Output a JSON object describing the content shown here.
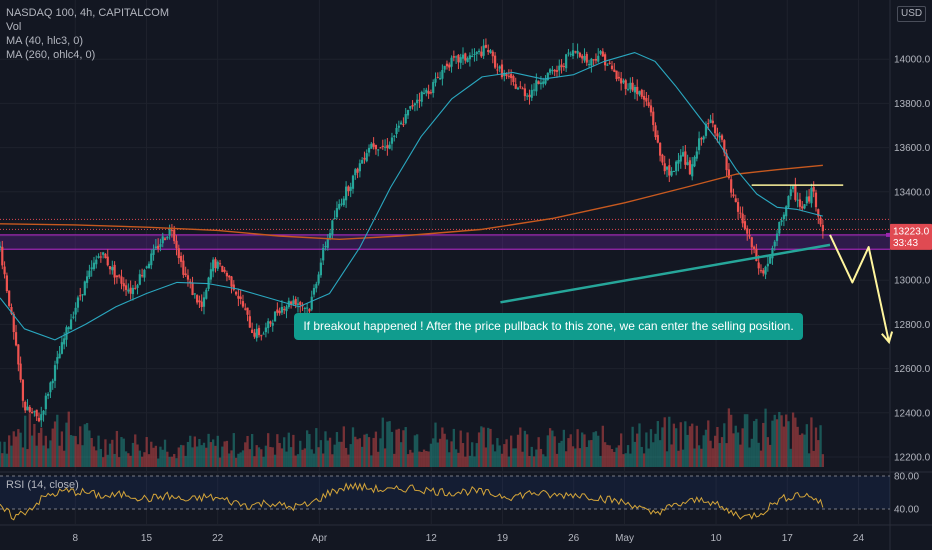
{
  "header": {
    "symbol_line": "NASDAQ 100, 4h, CAPITALCOM",
    "indicators": [
      "Vol",
      "MA (40, hlc3, 0)",
      "MA (260, ohlc4, 0)"
    ],
    "currency": "USD"
  },
  "price_tag": {
    "value": "13223.0",
    "countdown": "33:43",
    "color": "#e04a52"
  },
  "annotation": "If breakout happened ! After the price pullback to this zone, we can enter the selling position.",
  "rsi_panel": {
    "label": "RSI (14, close)",
    "levels": [
      "80.00",
      "40.00"
    ]
  },
  "colors": {
    "bullish": "#26a69a",
    "bearish": "#ef5350",
    "ma40": "#2aa7bf",
    "ma260": "#c7591f",
    "zone": "#9c27b0",
    "resistance": "#fff59d",
    "forecast": "#fff59d",
    "trendline": "#26a69a",
    "callout_bg": "#109c8e",
    "rsi_line": "#d4a53a"
  },
  "chart_data": {
    "type": "candlestick",
    "instrument": "NASDAQ 100",
    "timeframe": "4h",
    "y_axis": {
      "ticks": [
        12200,
        12400,
        12600,
        12800,
        13000,
        13200,
        13400,
        13600,
        13800,
        14000
      ],
      "range": [
        12150,
        14200
      ]
    },
    "x_axis": {
      "ticks": [
        {
          "label": "8",
          "d": 8
        },
        {
          "label": "15",
          "d": 15
        },
        {
          "label": "22",
          "d": 22
        },
        {
          "label": "Apr",
          "d": 32
        },
        {
          "label": "12",
          "d": 43
        },
        {
          "label": "19",
          "d": 50
        },
        {
          "label": "26",
          "d": 57
        },
        {
          "label": "May",
          "d": 62
        },
        {
          "label": "10",
          "d": 71
        },
        {
          "label": "17",
          "d": 78
        },
        {
          "label": "24",
          "d": 85
        }
      ],
      "range": [
        0.6,
        88.1
      ]
    },
    "price_path": [
      [
        0.6,
        13150
      ],
      [
        1.5,
        12900
      ],
      [
        3,
        12420
      ],
      [
        4.5,
        12370
      ],
      [
        6,
        12600
      ],
      [
        7.5,
        12820
      ],
      [
        9,
        12990
      ],
      [
        10.5,
        13130
      ],
      [
        12,
        13020
      ],
      [
        13.5,
        12950
      ],
      [
        15,
        13070
      ],
      [
        16.5,
        13180
      ],
      [
        17.5,
        13240
      ],
      [
        18.5,
        13060
      ],
      [
        19.5,
        12950
      ],
      [
        20.5,
        12870
      ],
      [
        21.5,
        13080
      ],
      [
        22.5,
        13050
      ],
      [
        23.5,
        12980
      ],
      [
        24.5,
        12880
      ],
      [
        25.5,
        12760
      ],
      [
        26.5,
        12760
      ],
      [
        28,
        12870
      ],
      [
        29.5,
        12910
      ],
      [
        31,
        12870
      ],
      [
        32.5,
        13150
      ],
      [
        34,
        13350
      ],
      [
        35.5,
        13480
      ],
      [
        37,
        13620
      ],
      [
        38.5,
        13600
      ],
      [
        40,
        13700
      ],
      [
        41.5,
        13820
      ],
      [
        43,
        13870
      ],
      [
        44.5,
        13980
      ],
      [
        46,
        14000
      ],
      [
        47.5,
        14020
      ],
      [
        48.5,
        14050
      ],
      [
        49.5,
        13960
      ],
      [
        51,
        13890
      ],
      [
        52.5,
        13840
      ],
      [
        54,
        13920
      ],
      [
        55.5,
        13950
      ],
      [
        56.5,
        14020
      ],
      [
        57.5,
        14040
      ],
      [
        58.5,
        13980
      ],
      [
        59.5,
        14030
      ],
      [
        60.5,
        13970
      ],
      [
        61.5,
        13900
      ],
      [
        63,
        13870
      ],
      [
        64.5,
        13780
      ],
      [
        65.5,
        13560
      ],
      [
        66.5,
        13460
      ],
      [
        67.5,
        13590
      ],
      [
        68.5,
        13480
      ],
      [
        69.5,
        13650
      ],
      [
        70.5,
        13720
      ],
      [
        71.5,
        13640
      ],
      [
        72.5,
        13380
      ],
      [
        73.5,
        13280
      ],
      [
        74.5,
        13150
      ],
      [
        75.5,
        13020
      ],
      [
        76.5,
        13120
      ],
      [
        77.5,
        13290
      ],
      [
        78.5,
        13410
      ],
      [
        79.5,
        13320
      ],
      [
        80.5,
        13410
      ],
      [
        81.5,
        13223
      ]
    ],
    "ma40_path": [
      [
        0.6,
        12920
      ],
      [
        3,
        12780
      ],
      [
        6,
        12730
      ],
      [
        9,
        12800
      ],
      [
        12,
        12880
      ],
      [
        15,
        12940
      ],
      [
        18,
        12990
      ],
      [
        21,
        12985
      ],
      [
        24,
        12960
      ],
      [
        27,
        12920
      ],
      [
        30,
        12880
      ],
      [
        33,
        12940
      ],
      [
        36,
        13150
      ],
      [
        39,
        13420
      ],
      [
        42,
        13650
      ],
      [
        45,
        13820
      ],
      [
        48,
        13920
      ],
      [
        51,
        13940
      ],
      [
        54,
        13910
      ],
      [
        57,
        13930
      ],
      [
        60,
        13990
      ],
      [
        63,
        14030
      ],
      [
        65,
        13990
      ],
      [
        67,
        13880
      ],
      [
        69,
        13760
      ],
      [
        71,
        13640
      ],
      [
        73,
        13500
      ],
      [
        75,
        13390
      ],
      [
        77,
        13330
      ],
      [
        79,
        13320
      ],
      [
        81.5,
        13290
      ]
    ],
    "ma260_path": [
      [
        0.6,
        13255
      ],
      [
        8,
        13250
      ],
      [
        15,
        13240
      ],
      [
        22,
        13225
      ],
      [
        28,
        13200
      ],
      [
        34,
        13185
      ],
      [
        40,
        13200
      ],
      [
        48,
        13230
      ],
      [
        55,
        13280
      ],
      [
        62,
        13350
      ],
      [
        68,
        13420
      ],
      [
        73,
        13480
      ],
      [
        77,
        13500
      ],
      [
        81.5,
        13520
      ]
    ],
    "volume_path": [
      [
        0.6,
        0.35
      ],
      [
        3,
        0.45
      ],
      [
        6,
        0.55
      ],
      [
        10,
        0.35
      ],
      [
        15,
        0.3
      ],
      [
        20,
        0.28
      ],
      [
        25,
        0.3
      ],
      [
        30,
        0.32
      ],
      [
        33,
        0.35
      ],
      [
        36,
        0.4
      ],
      [
        40,
        0.45
      ],
      [
        44,
        0.4
      ],
      [
        48,
        0.35
      ],
      [
        52,
        0.38
      ],
      [
        56,
        0.32
      ],
      [
        60,
        0.35
      ],
      [
        64,
        0.4
      ],
      [
        68,
        0.45
      ],
      [
        72,
        0.5
      ],
      [
        76,
        0.55
      ],
      [
        80,
        0.45
      ],
      [
        81.5,
        0.35
      ]
    ],
    "rsi_path": [
      [
        0.6,
        42
      ],
      [
        2,
        30
      ],
      [
        3.5,
        40
      ],
      [
        5,
        55
      ],
      [
        7,
        62
      ],
      [
        9,
        60
      ],
      [
        11,
        55
      ],
      [
        13,
        58
      ],
      [
        15,
        52
      ],
      [
        17,
        56
      ],
      [
        19,
        50
      ],
      [
        21,
        55
      ],
      [
        23,
        50
      ],
      [
        25,
        44
      ],
      [
        27,
        48
      ],
      [
        29,
        42
      ],
      [
        31,
        45
      ],
      [
        33,
        60
      ],
      [
        35,
        68
      ],
      [
        37,
        65
      ],
      [
        39,
        62
      ],
      [
        41,
        66
      ],
      [
        43,
        62
      ],
      [
        45,
        60
      ],
      [
        47,
        62
      ],
      [
        49,
        58
      ],
      [
        51,
        55
      ],
      [
        53,
        60
      ],
      [
        55,
        56
      ],
      [
        57,
        58
      ],
      [
        59,
        55
      ],
      [
        61,
        50
      ],
      [
        63,
        45
      ],
      [
        64.5,
        34
      ],
      [
        66,
        40
      ],
      [
        68,
        48
      ],
      [
        70,
        52
      ],
      [
        72,
        38
      ],
      [
        74,
        30
      ],
      [
        75.5,
        36
      ],
      [
        77,
        50
      ],
      [
        79,
        58
      ],
      [
        80.5,
        55
      ],
      [
        81.5,
        44
      ]
    ],
    "rsi_range": [
      25,
      90
    ],
    "levels": [
      {
        "name": "pullback-zone-top",
        "price": 13205
      },
      {
        "name": "pullback-zone-bottom",
        "price": 13140
      },
      {
        "name": "resistance",
        "price": 13430,
        "from": 74.5,
        "to": 83.5
      },
      {
        "name": "dotted-line-1",
        "price": 13275
      },
      {
        "name": "dotted-line-2",
        "price": 13230
      }
    ],
    "trendline": {
      "from": [
        49.8,
        12900
      ],
      "to": [
        82.2,
        13160
      ]
    },
    "forecast_path": [
      [
        82.2,
        13205
      ],
      [
        84.4,
        12990
      ],
      [
        86,
        13150
      ],
      [
        88,
        12720
      ]
    ]
  }
}
